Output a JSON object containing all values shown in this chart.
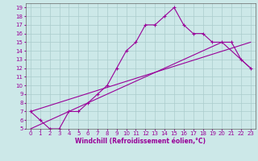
{
  "xlabel": "Windchill (Refroidissement éolien,°C)",
  "bg_color": "#cce8e8",
  "line_color": "#990099",
  "grid_color": "#aacccc",
  "xlim": [
    -0.5,
    23.5
  ],
  "ylim": [
    5,
    19.5
  ],
  "xticks": [
    0,
    1,
    2,
    3,
    4,
    5,
    6,
    7,
    8,
    9,
    10,
    11,
    12,
    13,
    14,
    15,
    16,
    17,
    18,
    19,
    20,
    21,
    22,
    23
  ],
  "yticks": [
    5,
    6,
    7,
    8,
    9,
    10,
    11,
    12,
    13,
    14,
    15,
    16,
    17,
    18,
    19
  ],
  "line1_x": [
    0,
    1,
    2,
    3,
    4,
    5,
    6,
    7,
    8,
    9,
    10,
    11,
    12,
    13,
    14,
    15,
    16,
    17,
    18,
    19,
    20,
    21,
    22,
    23
  ],
  "line1_y": [
    7,
    6,
    5,
    5,
    7,
    7,
    8,
    9,
    10,
    12,
    14,
    15,
    17,
    17,
    18,
    19,
    17,
    16,
    16,
    15,
    15,
    15,
    13,
    12
  ],
  "line2_x": [
    0,
    23
  ],
  "line2_y": [
    7,
    15
  ],
  "line3_x": [
    0,
    20,
    23
  ],
  "line3_y": [
    5,
    15,
    12
  ],
  "axis_fontsize": 5.5,
  "tick_fontsize": 5.0
}
